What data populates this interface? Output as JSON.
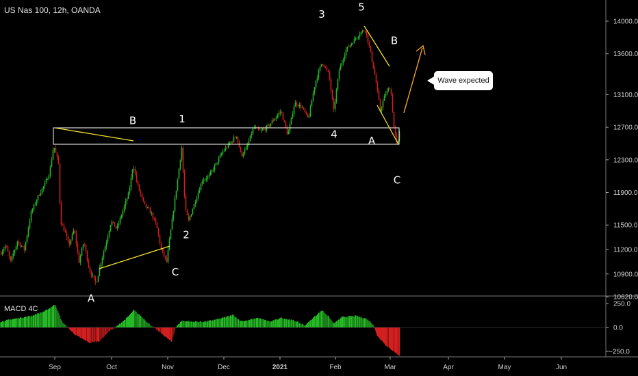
{
  "chart_data": {
    "type": "candlestick",
    "title": "US Nas 100, 12h, OANDA",
    "x_ticks": [
      "Sep",
      "Oct",
      "Nov",
      "Dec",
      "2021",
      "Feb",
      "Mar",
      "Apr",
      "May",
      "Jun"
    ],
    "price_ticks": [
      14000.0,
      13600.0,
      13100.0,
      12700.0,
      12300.0,
      11900.0,
      11500.0,
      11200.0,
      10900.0,
      10620.0
    ],
    "price_range": [
      10450,
      14200
    ],
    "price_path": [
      [
        0,
        11150
      ],
      [
        8,
        11250
      ],
      [
        15,
        11050
      ],
      [
        25,
        11300
      ],
      [
        35,
        11200
      ],
      [
        45,
        11650
      ],
      [
        55,
        11850
      ],
      [
        65,
        12000
      ],
      [
        72,
        12150
      ],
      [
        78,
        12480
      ],
      [
        85,
        12250
      ],
      [
        88,
        11550
      ],
      [
        95,
        11400
      ],
      [
        100,
        11250
      ],
      [
        108,
        11450
      ],
      [
        115,
        11050
      ],
      [
        122,
        11300
      ],
      [
        130,
        10950
      ],
      [
        140,
        10780
      ],
      [
        147,
        11050
      ],
      [
        155,
        11300
      ],
      [
        162,
        11550
      ],
      [
        170,
        11450
      ],
      [
        180,
        11700
      ],
      [
        188,
        11900
      ],
      [
        194,
        12250
      ],
      [
        200,
        12000
      ],
      [
        210,
        11750
      ],
      [
        220,
        11650
      ],
      [
        228,
        11500
      ],
      [
        235,
        11200
      ],
      [
        243,
        11050
      ],
      [
        250,
        11500
      ],
      [
        258,
        12000
      ],
      [
        265,
        12450
      ],
      [
        270,
        11700
      ],
      [
        275,
        11550
      ],
      [
        285,
        11800
      ],
      [
        295,
        12050
      ],
      [
        305,
        12100
      ],
      [
        315,
        12250
      ],
      [
        325,
        12400
      ],
      [
        335,
        12500
      ],
      [
        345,
        12600
      ],
      [
        352,
        12350
      ],
      [
        360,
        12450
      ],
      [
        370,
        12700
      ],
      [
        380,
        12650
      ],
      [
        390,
        12700
      ],
      [
        400,
        12800
      ],
      [
        410,
        12900
      ],
      [
        420,
        12600
      ],
      [
        430,
        13000
      ],
      [
        440,
        12950
      ],
      [
        450,
        12800
      ],
      [
        460,
        13250
      ],
      [
        470,
        13500
      ],
      [
        480,
        13350
      ],
      [
        487,
        12900
      ],
      [
        495,
        13400
      ],
      [
        505,
        13650
      ],
      [
        515,
        13750
      ],
      [
        525,
        13850
      ],
      [
        533,
        13900
      ],
      [
        540,
        13650
      ],
      [
        548,
        13300
      ],
      [
        555,
        12900
      ],
      [
        562,
        13100
      ],
      [
        570,
        13200
      ],
      [
        575,
        12700
      ],
      [
        580,
        12450
      ],
      [
        583,
        12650
      ]
    ],
    "wave_labels": [
      {
        "label": "A",
        "x": 133,
        "price": 10560
      },
      {
        "label": "B",
        "x": 194,
        "price": 12740
      },
      {
        "label": "C",
        "x": 256,
        "price": 10880
      },
      {
        "label": "1",
        "x": 266,
        "price": 12760
      },
      {
        "label": "2",
        "x": 272,
        "price": 11340
      },
      {
        "label": "3",
        "x": 470,
        "price": 14040
      },
      {
        "label": "4",
        "x": 488,
        "price": 12570
      },
      {
        "label": "5",
        "x": 528,
        "price": 14130
      },
      {
        "label": "B",
        "x": 576,
        "price": 13720
      },
      {
        "label": "A",
        "x": 543,
        "price": 12490
      },
      {
        "label": "C",
        "x": 580,
        "price": 12010
      }
    ],
    "macd": {
      "name": "MACD 4C",
      "ticks": [
        250.0,
        0.0,
        -250.0
      ],
      "range": [
        -280,
        320
      ],
      "path": [
        [
          0,
          60
        ],
        [
          20,
          90
        ],
        [
          45,
          120
        ],
        [
          65,
          170
        ],
        [
          80,
          240
        ],
        [
          90,
          60
        ],
        [
          98,
          0
        ],
        [
          110,
          -80
        ],
        [
          130,
          -160
        ],
        [
          145,
          -140
        ],
        [
          160,
          -30
        ],
        [
          170,
          10
        ],
        [
          185,
          100
        ],
        [
          195,
          180
        ],
        [
          205,
          120
        ],
        [
          220,
          20
        ],
        [
          235,
          -60
        ],
        [
          250,
          -150
        ],
        [
          256,
          0
        ],
        [
          265,
          70
        ],
        [
          280,
          60
        ],
        [
          300,
          60
        ],
        [
          320,
          90
        ],
        [
          340,
          130
        ],
        [
          350,
          70
        ],
        [
          360,
          70
        ],
        [
          375,
          100
        ],
        [
          395,
          60
        ],
        [
          410,
          100
        ],
        [
          430,
          70
        ],
        [
          445,
          20
        ],
        [
          460,
          120
        ],
        [
          470,
          180
        ],
        [
          480,
          110
        ],
        [
          487,
          40
        ],
        [
          500,
          110
        ],
        [
          520,
          120
        ],
        [
          535,
          90
        ],
        [
          545,
          30
        ],
        [
          550,
          -80
        ],
        [
          565,
          -200
        ],
        [
          575,
          -250
        ],
        [
          582,
          -290
        ]
      ]
    },
    "annotation": "Wave expected"
  }
}
